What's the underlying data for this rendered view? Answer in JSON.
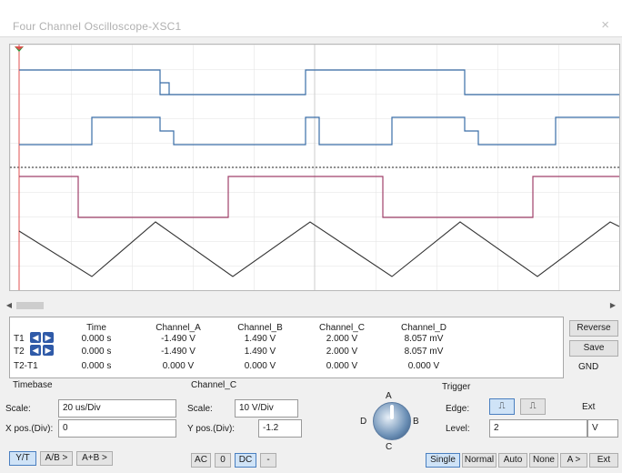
{
  "window": {
    "title": "Four Channel Oscilloscope-XSC1",
    "close_glyph": "×"
  },
  "readout": {
    "rows": [
      {
        "label": "T1",
        "time": "0.000 s",
        "a": "-1.490 V",
        "b": "1.490 V",
        "c": "2.000 V",
        "d": "8.057 mV"
      },
      {
        "label": "T2",
        "time": "0.000 s",
        "a": "-1.490 V",
        "b": "1.490 V",
        "c": "2.000 V",
        "d": "8.057 mV"
      },
      {
        "label": "T2-T1",
        "time": "0.000 s",
        "a": "0.000 V",
        "b": "0.000 V",
        "c": "0.000 V",
        "d": "0.000 V"
      }
    ],
    "headers": {
      "time": "Time",
      "a": "Channel_A",
      "b": "Channel_B",
      "c": "Channel_C",
      "d": "Channel_D"
    }
  },
  "side": {
    "reverse": "Reverse",
    "save": "Save",
    "gnd": "GND"
  },
  "timebase": {
    "title": "Timebase",
    "scale_label": "Scale:",
    "scale_value": "20 us/Div",
    "xpos_label": "X pos.(Div):",
    "xpos_value": "0",
    "modes": [
      "Y/T",
      "A/B >",
      "A+B >"
    ]
  },
  "channel": {
    "title": "Channel_C",
    "scale_label": "Scale:",
    "scale_value": "10  V/Div",
    "ypos_label": "Y pos.(Div):",
    "ypos_value": "-1.2",
    "coupling": [
      "AC",
      "0",
      "DC",
      "-"
    ]
  },
  "knob": {
    "labels": {
      "a": "A",
      "b": "B",
      "c": "C",
      "d": "D"
    }
  },
  "trigger": {
    "title": "Trigger",
    "edge_label": "Edge:",
    "rise_glyph": "⎍",
    "fall_glyph": "⎍",
    "ext_label": "Ext",
    "level_label": "Level:",
    "level_value": "2",
    "level_unit": "V",
    "modes": [
      "Single",
      "Normal",
      "Auto",
      "None",
      "A >",
      "Ext"
    ]
  },
  "colors": {
    "ch_a": "#3a6ea8",
    "ch_b": "#3a6ea8",
    "ch_c": "#a0406a",
    "ch_d": "#333333",
    "accent": "#2f5aa8"
  }
}
